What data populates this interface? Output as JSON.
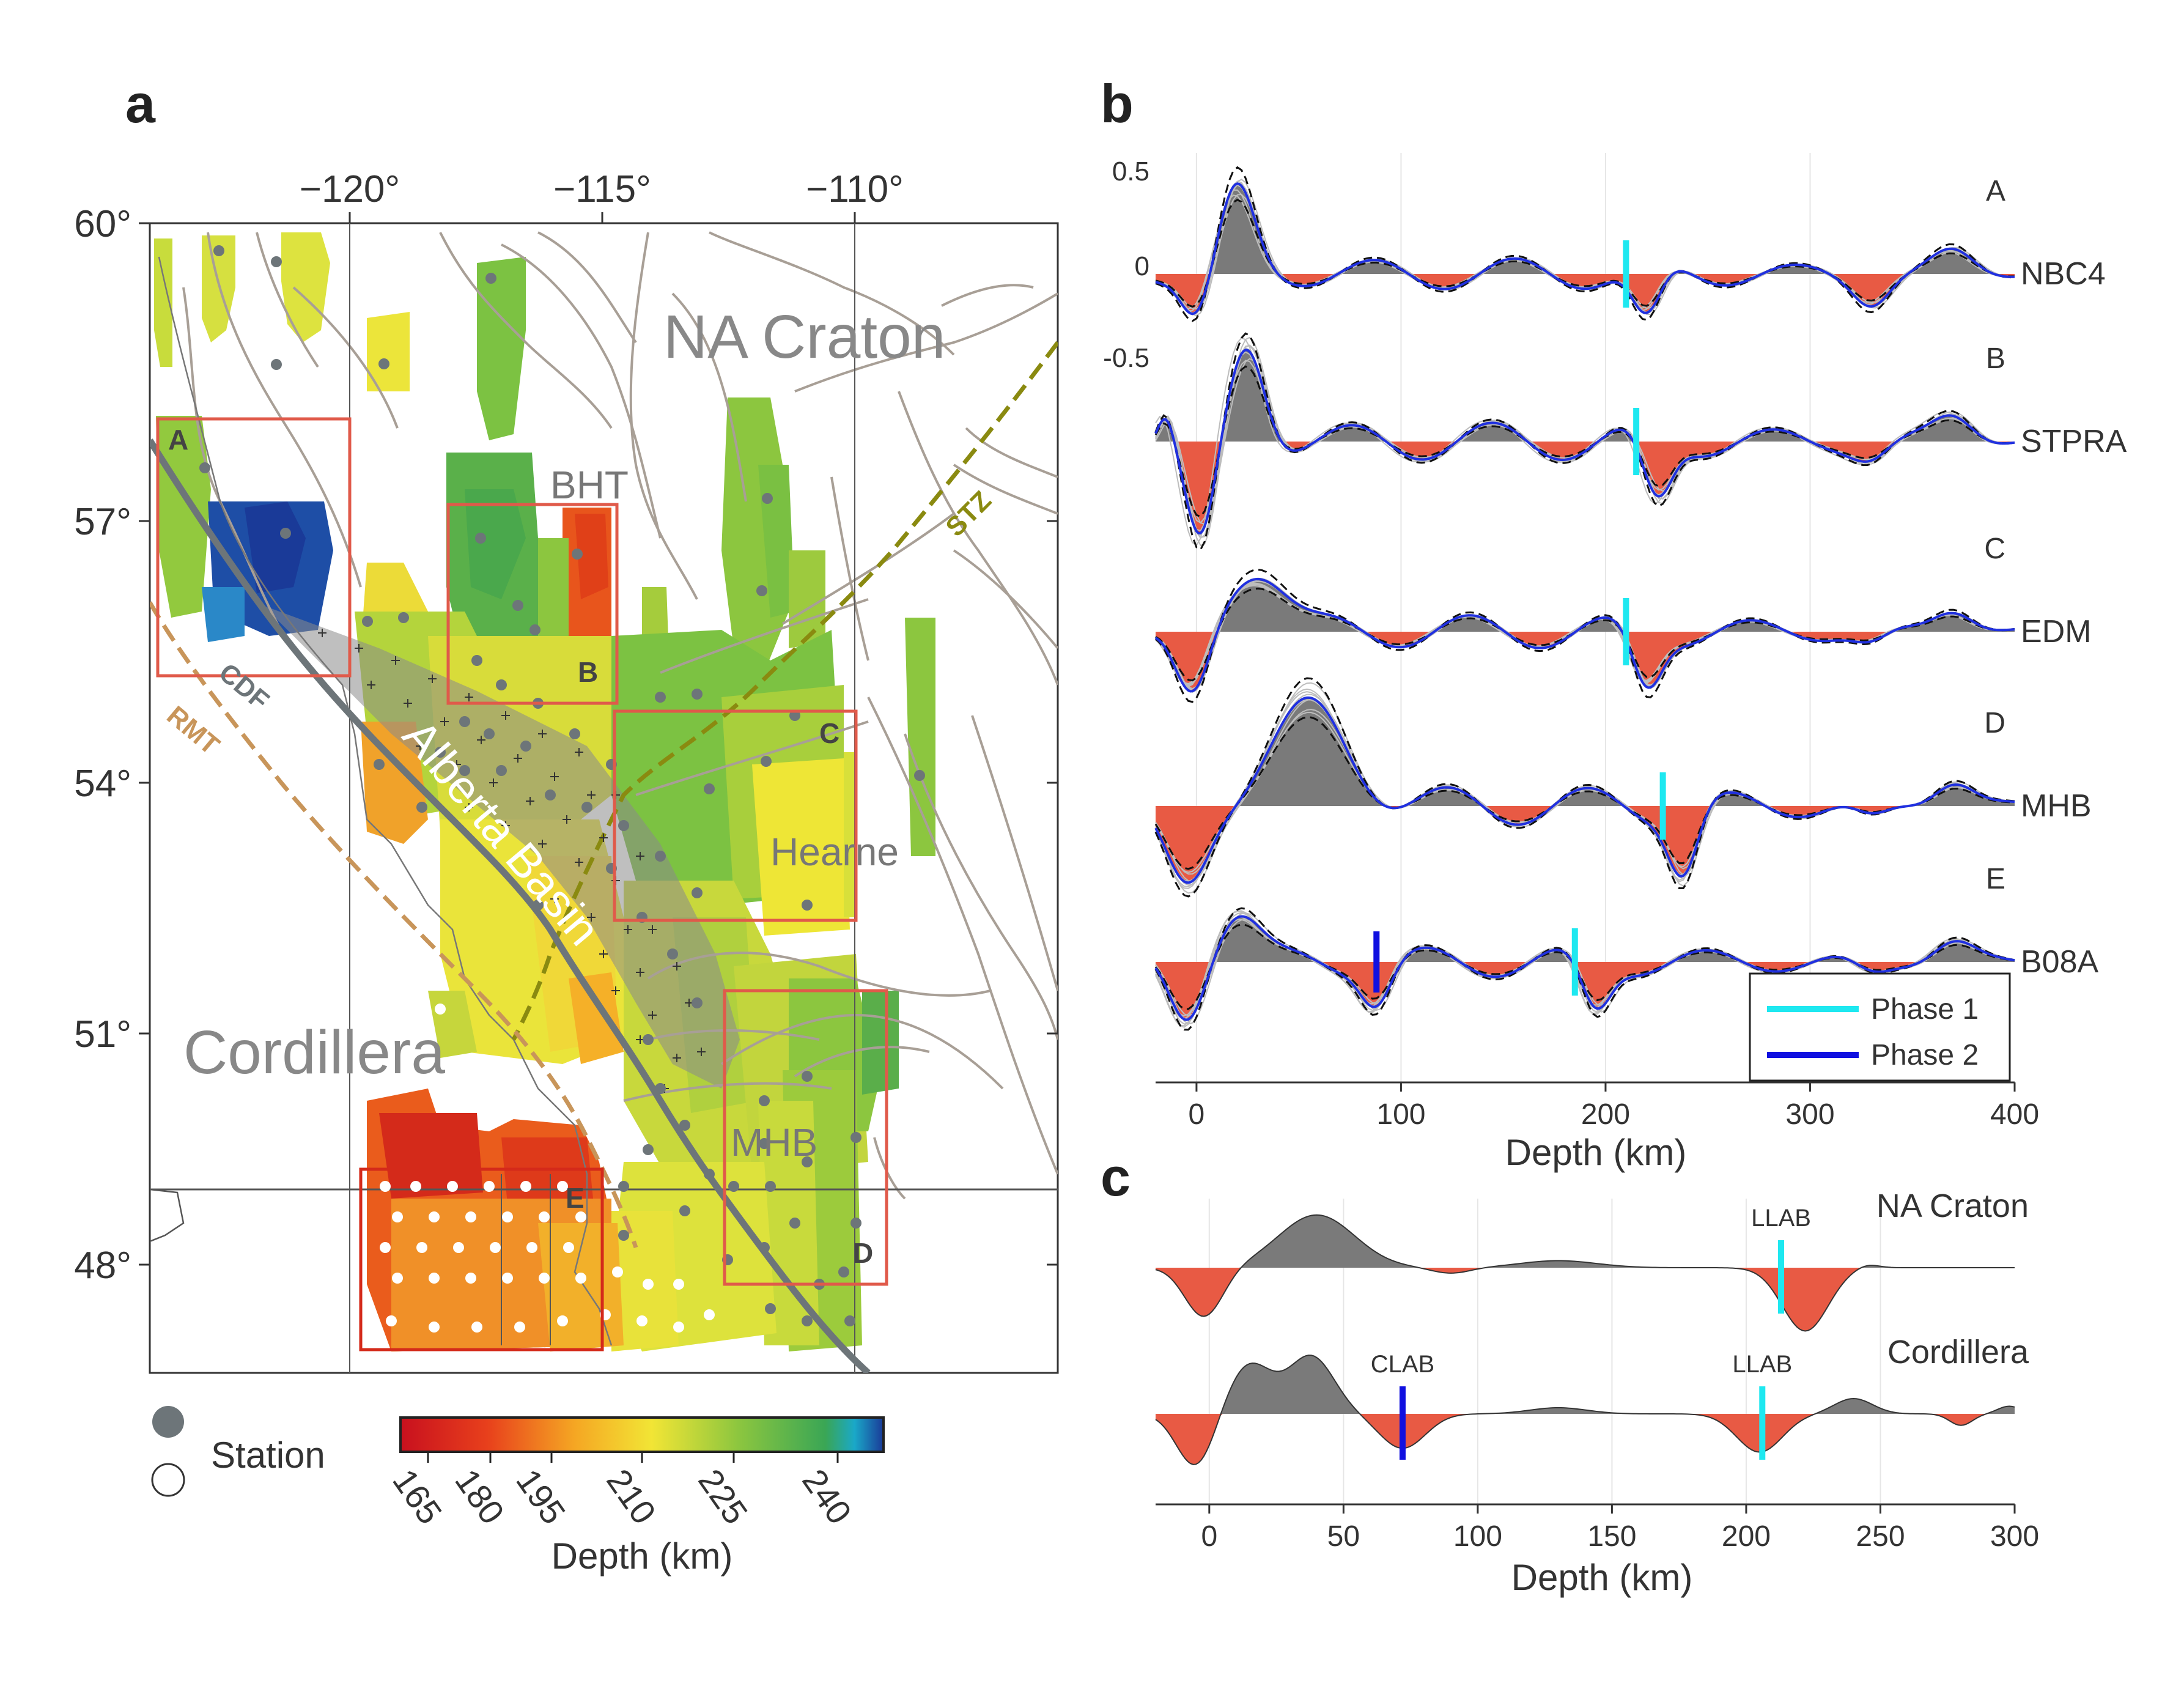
{
  "panel_labels": {
    "a": "a",
    "b": "b",
    "c": "c"
  },
  "map": {
    "lon_ticks": [
      "−120°",
      "−115°",
      "−110°"
    ],
    "lat_ticks": [
      "60°",
      "57°",
      "54°",
      "51°",
      "48°"
    ],
    "regions": {
      "craton": "NA Craton",
      "cordillera": "Cordillera",
      "hearne": "Hearne",
      "basin": "Alberta Basin",
      "bht": "BHT",
      "mhb": "MHB"
    },
    "faults": {
      "stz": "STZ",
      "cdf": "CDF",
      "rmt": "RMT"
    },
    "boxes": [
      "A",
      "B",
      "C",
      "D",
      "E"
    ],
    "legend": {
      "station": "Station"
    },
    "colorbar": {
      "ticks": [
        "165",
        "180",
        "195",
        "210",
        "225",
        "240"
      ],
      "label": "Depth (km)",
      "colors": [
        "#c8101e",
        "#e8401c",
        "#f5a623",
        "#f2e535",
        "#8cc63f",
        "#3aa655",
        "#1a5aa8"
      ]
    }
  },
  "panel_b": {
    "y_ticks": [
      "0.5",
      "0",
      "-0.5"
    ],
    "traces": [
      {
        "box": "A",
        "station": "NBC4",
        "phase1_depth": 210,
        "phase2_depth": null
      },
      {
        "box": "B",
        "station": "STPRA",
        "phase1_depth": 215,
        "phase2_depth": null
      },
      {
        "box": "C",
        "station": "EDM",
        "phase1_depth": 210,
        "phase2_depth": null
      },
      {
        "box": "D",
        "station": "MHB",
        "phase1_depth": 228,
        "phase2_depth": null
      },
      {
        "box": "E",
        "station": "B08A",
        "phase1_depth": 185,
        "phase2_depth": 88
      }
    ],
    "legend": {
      "phase1": "Phase 1",
      "phase2": "Phase 2",
      "phase1_color": "#1ee8f0",
      "phase2_color": "#1010e0"
    },
    "x_ticks": [
      "0",
      "100",
      "200",
      "300",
      "400"
    ],
    "x_label": "Depth (km)"
  },
  "panel_c": {
    "traces": [
      {
        "name": "NA Craton",
        "markers": [
          {
            "label": "LLAB",
            "depth": 213,
            "color": "#1ee8f0"
          }
        ]
      },
      {
        "name": "Cordillera",
        "markers": [
          {
            "label": "CLAB",
            "depth": 72,
            "color": "#1010e0"
          },
          {
            "label": "LLAB",
            "depth": 206,
            "color": "#1ee8f0"
          }
        ]
      }
    ],
    "x_ticks": [
      "0",
      "50",
      "100",
      "150",
      "200",
      "250",
      "300"
    ],
    "x_label": "Depth (km)"
  },
  "colors": {
    "positive": "#7a7a7a",
    "negative": "#e85a44",
    "box": "#e05a4a",
    "line": "#a89f96",
    "stz": "#8a8a10",
    "rmt": "#c8955a",
    "cdf": "#6d7579"
  }
}
